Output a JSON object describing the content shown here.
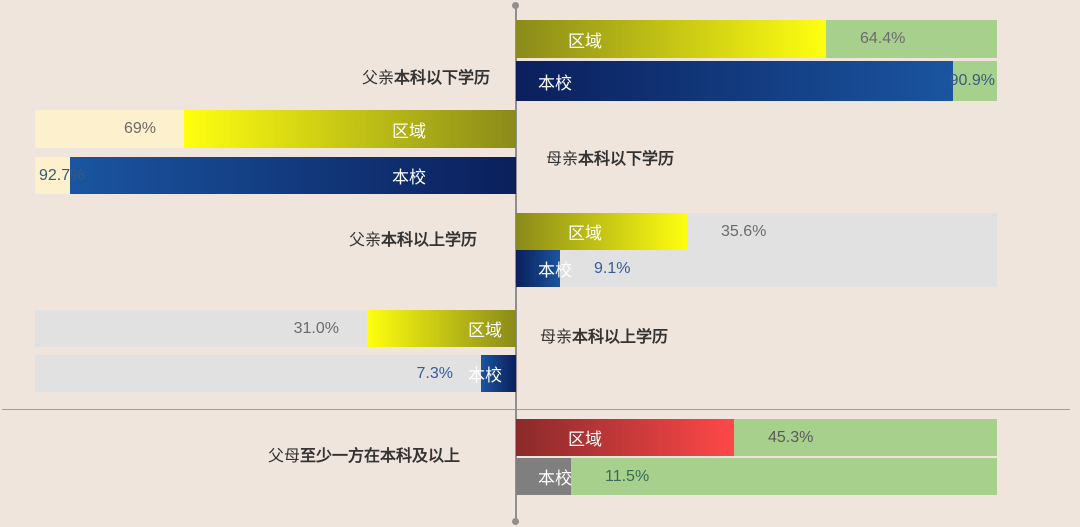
{
  "chart_data": {
    "type": "bar",
    "orientation": "horizontal-diverging",
    "x_max": 100,
    "grid": false,
    "groups": [
      {
        "category": "父亲本科以下学历",
        "category_plain": "父亲",
        "category_bold": "本科以下学历",
        "side": "right",
        "track_color": "#a8d08d",
        "bars": [
          {
            "name": "区域",
            "value": 64.4,
            "value_label": "64.4%",
            "color": "#d9e21a",
            "value_color": "#6b6b6b"
          },
          {
            "name": "本校",
            "value": 90.9,
            "value_label": "90.9%",
            "color": "#0f2f7a",
            "value_color": "#3a5a7a"
          }
        ]
      },
      {
        "category": "母亲本科以下学历",
        "category_plain": "母亲",
        "category_bold": "本科以下学历",
        "side": "left",
        "track_color": "#fdf0cc",
        "bars": [
          {
            "name": "区域",
            "value": 69,
            "value_label": "69%",
            "color": "#d9e21a",
            "value_color": "#6b6b6b"
          },
          {
            "name": "本校",
            "value": 92.7,
            "value_label": "92.7%",
            "color": "#0f2f7a",
            "value_color": "#3a5a7a"
          }
        ]
      },
      {
        "category": "父亲本科以上学历",
        "category_plain": "父亲",
        "category_bold": "本科以上学历",
        "side": "right",
        "track_color": "#e1e1e1",
        "bars": [
          {
            "name": "区域",
            "value": 35.6,
            "value_label": "35.6%",
            "color": "#d9e21a",
            "value_color": "#6b6b6b"
          },
          {
            "name": "本校",
            "value": 9.1,
            "value_label": "9.1%",
            "color": "#0f2f7a",
            "value_color": "#3a5a9a"
          }
        ]
      },
      {
        "category": "母亲本科以上学历",
        "category_plain": "母亲",
        "category_bold": "本科以上学历",
        "side": "left",
        "track_color": "#e1e1e1",
        "bars": [
          {
            "name": "区域",
            "value": 31.0,
            "value_label": "31.0%",
            "color": "#d9e21a",
            "value_color": "#6b6b6b"
          },
          {
            "name": "本校",
            "value": 7.3,
            "value_label": "7.3%",
            "color": "#0f2f7a",
            "value_color": "#3a5a9a"
          }
        ]
      },
      {
        "category": "父母至少一方在本科及以上",
        "category_plain": "父母",
        "category_bold": "至少一方在本科及以上",
        "side": "right",
        "track_color": "#a8d08d",
        "bars": [
          {
            "name": "区域",
            "value": 45.3,
            "value_label": "45.3%",
            "color": "#e03a3e",
            "value_color": "#5a5a5a"
          },
          {
            "name": "本校",
            "value": 11.5,
            "value_label": "11.5%",
            "color": "#7f7f7f",
            "value_color": "#3a6a5a"
          }
        ]
      }
    ]
  }
}
